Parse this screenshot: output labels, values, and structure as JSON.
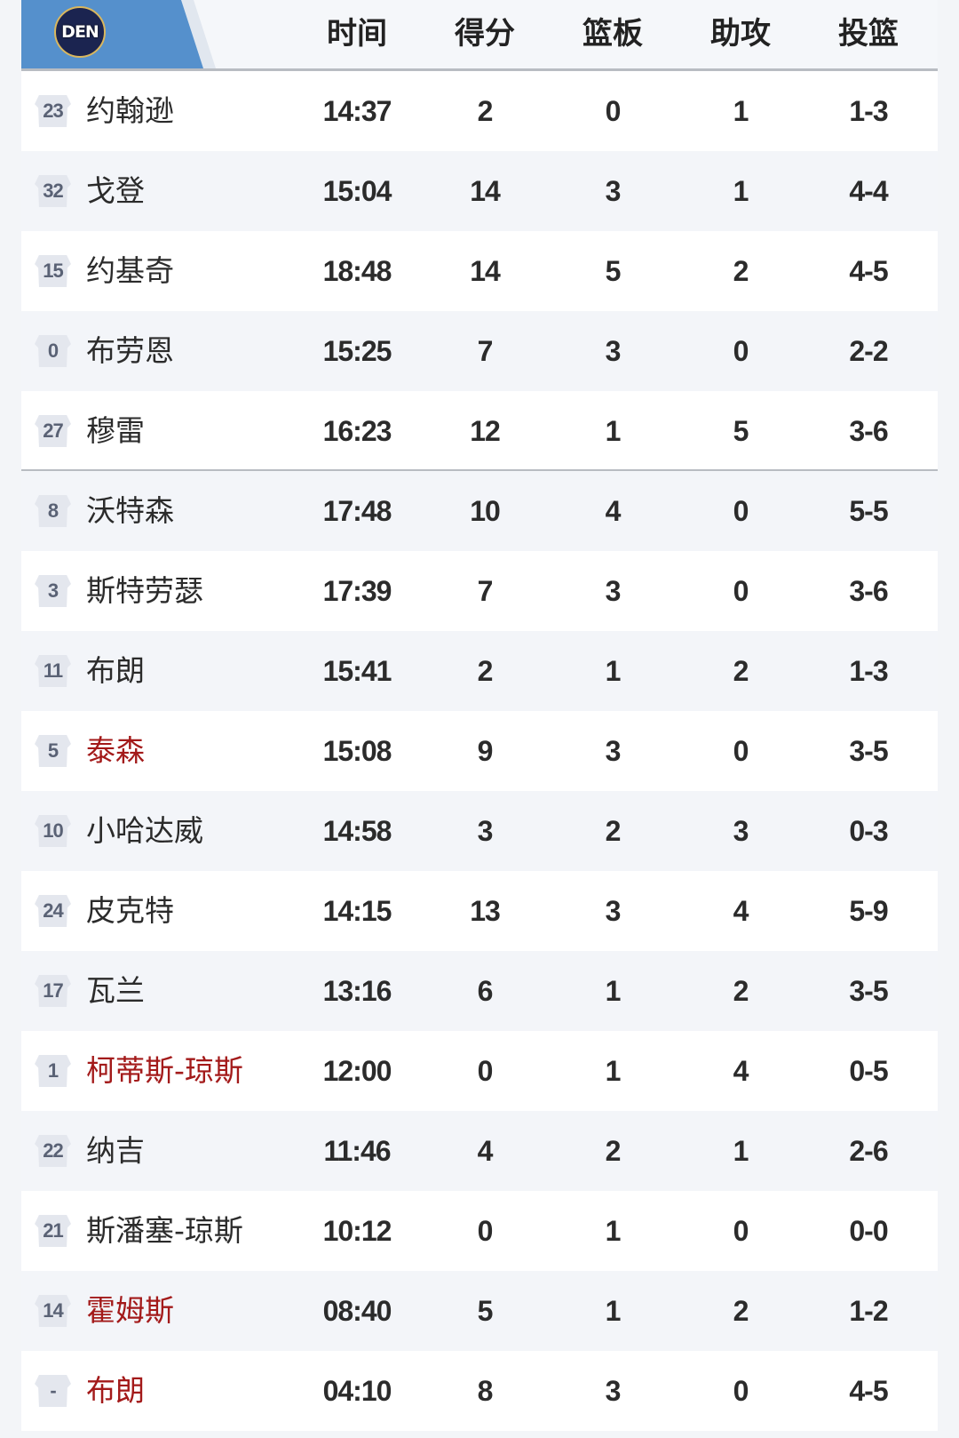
{
  "team": {
    "abbr": "DEN",
    "tab_color": "#5590cc"
  },
  "columns": [
    "时间",
    "得分",
    "篮板",
    "助攻",
    "投篮"
  ],
  "highlight_color": "#a31a1a",
  "players": [
    {
      "number": "23",
      "name": "约翰逊",
      "time": "14:37",
      "pts": "2",
      "reb": "0",
      "ast": "1",
      "fg": "1-3",
      "highlight": false
    },
    {
      "number": "32",
      "name": "戈登",
      "time": "15:04",
      "pts": "14",
      "reb": "3",
      "ast": "1",
      "fg": "4-4",
      "highlight": false
    },
    {
      "number": "15",
      "name": "约基奇",
      "time": "18:48",
      "pts": "14",
      "reb": "5",
      "ast": "2",
      "fg": "4-5",
      "highlight": false
    },
    {
      "number": "0",
      "name": "布劳恩",
      "time": "15:25",
      "pts": "7",
      "reb": "3",
      "ast": "0",
      "fg": "2-2",
      "highlight": false
    },
    {
      "number": "27",
      "name": "穆雷",
      "time": "16:23",
      "pts": "12",
      "reb": "1",
      "ast": "5",
      "fg": "3-6",
      "highlight": false
    },
    {
      "number": "8",
      "name": "沃特森",
      "time": "17:48",
      "pts": "10",
      "reb": "4",
      "ast": "0",
      "fg": "5-5",
      "highlight": false
    },
    {
      "number": "3",
      "name": "斯特劳瑟",
      "time": "17:39",
      "pts": "7",
      "reb": "3",
      "ast": "0",
      "fg": "3-6",
      "highlight": false
    },
    {
      "number": "11",
      "name": "布朗",
      "time": "15:41",
      "pts": "2",
      "reb": "1",
      "ast": "2",
      "fg": "1-3",
      "highlight": false
    },
    {
      "number": "5",
      "name": "泰森",
      "time": "15:08",
      "pts": "9",
      "reb": "3",
      "ast": "0",
      "fg": "3-5",
      "highlight": true
    },
    {
      "number": "10",
      "name": "小哈达威",
      "time": "14:58",
      "pts": "3",
      "reb": "2",
      "ast": "3",
      "fg": "0-3",
      "highlight": false
    },
    {
      "number": "24",
      "name": "皮克特",
      "time": "14:15",
      "pts": "13",
      "reb": "3",
      "ast": "4",
      "fg": "5-9",
      "highlight": false
    },
    {
      "number": "17",
      "name": "瓦兰",
      "time": "13:16",
      "pts": "6",
      "reb": "1",
      "ast": "2",
      "fg": "3-5",
      "highlight": false
    },
    {
      "number": "1",
      "name": "柯蒂斯-琼斯",
      "time": "12:00",
      "pts": "0",
      "reb": "1",
      "ast": "4",
      "fg": "0-5",
      "highlight": true
    },
    {
      "number": "22",
      "name": "纳吉",
      "time": "11:46",
      "pts": "4",
      "reb": "2",
      "ast": "1",
      "fg": "2-6",
      "highlight": false
    },
    {
      "number": "21",
      "name": "斯潘塞-琼斯",
      "time": "10:12",
      "pts": "0",
      "reb": "1",
      "ast": "0",
      "fg": "0-0",
      "highlight": false
    },
    {
      "number": "14",
      "name": "霍姆斯",
      "time": "08:40",
      "pts": "5",
      "reb": "1",
      "ast": "2",
      "fg": "1-2",
      "highlight": true
    },
    {
      "number": "-",
      "name": "布朗",
      "time": "04:10",
      "pts": "8",
      "reb": "3",
      "ast": "0",
      "fg": "4-5",
      "highlight": true
    }
  ]
}
